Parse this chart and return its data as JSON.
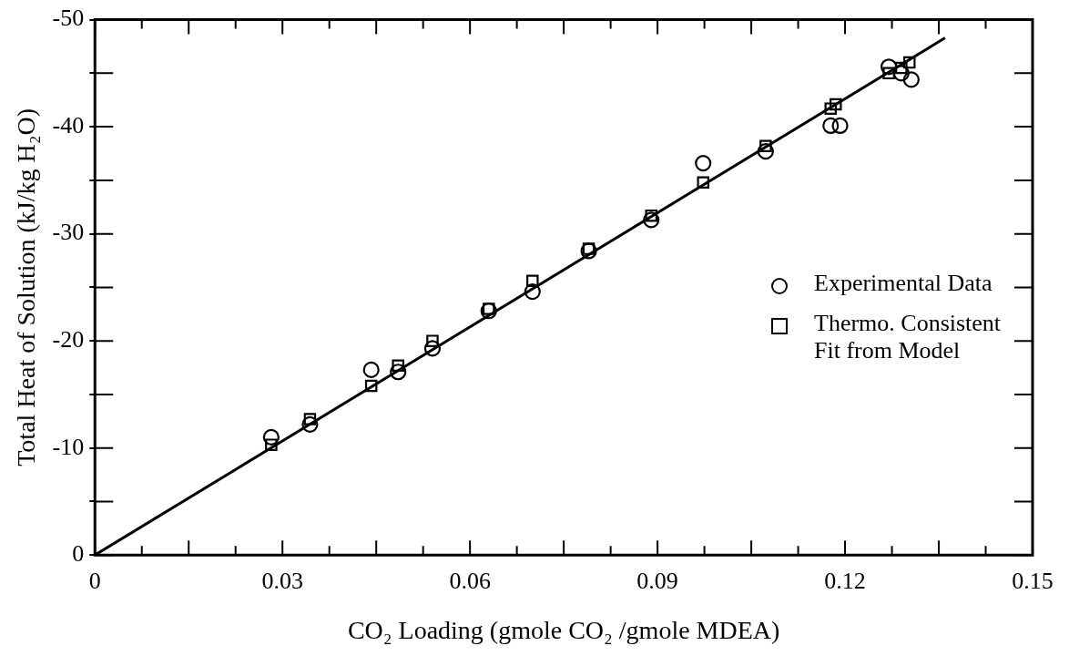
{
  "chart_data": {
    "type": "scatter",
    "xlabel": "CO₂ Loading (gmole CO₂ /gmole MDEA)",
    "ylabel": "Total Heat of Solution (kJ/kg H₂O)",
    "series": [
      {
        "name": "Experimental Data",
        "color": "#000000",
        "marker": "circle",
        "x": [
          0.0282,
          0.0344,
          0.0442,
          0.0485,
          0.054,
          0.063,
          0.07,
          0.079,
          0.089,
          0.0973,
          0.1073,
          0.1177,
          0.1192,
          0.127,
          0.129,
          0.1306
        ],
        "values": [
          -11.0,
          -12.2,
          -17.3,
          -17.1,
          -19.3,
          -22.8,
          -24.6,
          -28.4,
          -31.3,
          -36.6,
          -37.7,
          -40.1,
          -40.1,
          -45.6,
          -45.0,
          -44.4
        ]
      },
      {
        "name": "Thermo. Consistent Fit from Model",
        "color": "#000000",
        "marker": "square",
        "x": [
          0.0282,
          0.0344,
          0.0442,
          0.0485,
          0.054,
          0.063,
          0.07,
          0.079,
          0.089,
          0.0973,
          0.1073,
          0.1177,
          0.1185,
          0.127,
          0.129,
          0.1303
        ],
        "values": [
          -10.3,
          -12.7,
          -15.8,
          -17.7,
          -20.0,
          -23.0,
          -25.6,
          -28.6,
          -31.7,
          -34.8,
          -38.2,
          -41.7,
          -42.1,
          -45.0,
          -45.5,
          -46.0
        ]
      },
      {
        "type": "line",
        "color": "#000000",
        "marker": "none",
        "line_style": "solid",
        "x": [
          0,
          0.136
        ],
        "values": [
          0,
          -48.3
        ]
      }
    ],
    "xlim": [
      0,
      0.15
    ],
    "xticks": [
      0,
      {
        "value": 0.0075,
        "label": null
      },
      {
        "value": 0.015,
        "label": null
      },
      {
        "value": 0.0225,
        "label": null
      },
      {
        "value": 0.03,
        "label": "0.03"
      },
      {
        "value": 0.0375,
        "label": null
      },
      {
        "value": 0.045,
        "label": null
      },
      {
        "value": 0.0525,
        "label": null
      },
      {
        "value": 0.06,
        "label": "0.06"
      },
      {
        "value": 0.0675,
        "label": null
      },
      {
        "value": 0.075,
        "label": null
      },
      {
        "value": 0.0825,
        "label": null
      },
      {
        "value": 0.09,
        "label": "0.09"
      },
      {
        "value": 0.0975,
        "label": null
      },
      {
        "value": 0.105,
        "label": null
      },
      {
        "value": 0.1125,
        "label": null
      },
      {
        "value": 0.12,
        "label": "0.12"
      },
      {
        "value": 0.1275,
        "label": null
      },
      {
        "value": 0.135,
        "label": null
      },
      {
        "value": 0.1425,
        "label": null
      },
      {
        "value": 0.15,
        "label": "0.15"
      }
    ],
    "ylim": [
      0,
      -50
    ],
    "yticks": [
      0,
      {
        "value": -5,
        "label": null
      },
      -10,
      {
        "value": -15,
        "label": null
      },
      -20,
      {
        "value": -25,
        "label": null
      },
      -30,
      {
        "value": -35,
        "label": null
      },
      -40,
      {
        "value": -45,
        "label": null
      },
      -50
    ],
    "grid": false,
    "legend": "right"
  }
}
